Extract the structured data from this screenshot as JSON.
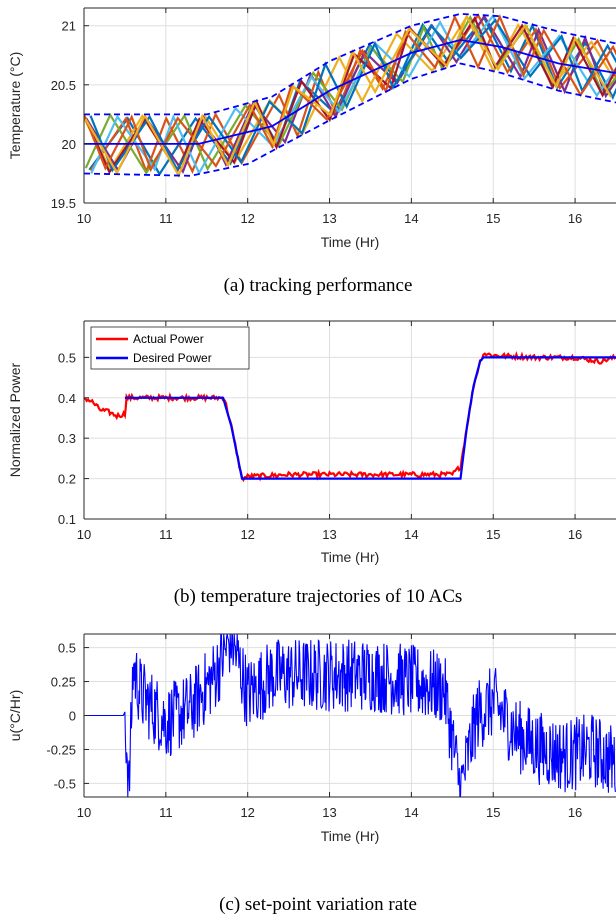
{
  "chart_data": [
    {
      "type": "line",
      "caption": "(a) tracking performance",
      "xlabel": "Time (Hr)",
      "ylabel": "Temperature (°C)",
      "xlim": [
        10,
        16.5
      ],
      "ylim": [
        19.5,
        21.15
      ],
      "xticks": [
        "10",
        "11",
        "12",
        "13",
        "14",
        "15",
        "16"
      ],
      "yticks": [
        "19.5",
        "20",
        "20.5",
        "21"
      ],
      "grid": true,
      "series_count": 10,
      "bounds": [
        {
          "name": "",
          "x": [
            10,
            11.5,
            12.3,
            13,
            14,
            14.6,
            15.1,
            15.8,
            16.5
          ],
          "y": [
            20.25,
            20.25,
            20.4,
            20.7,
            21.0,
            21.1,
            21.08,
            20.95,
            20.85
          ]
        },
        {
          "name": "",
          "x": [
            10,
            11.3,
            12.0,
            13,
            14,
            14.6,
            15.1,
            15.8,
            16.5
          ],
          "y": [
            19.75,
            19.73,
            19.83,
            20.2,
            20.55,
            20.68,
            20.6,
            20.45,
            20.35
          ]
        },
        {
          "name": "",
          "x": [
            10,
            11.4,
            12.3,
            13,
            14,
            14.6,
            15.1,
            15.8,
            16.5
          ],
          "y": [
            20.0,
            20.0,
            20.15,
            20.45,
            20.77,
            20.88,
            20.82,
            20.68,
            20.6
          ]
        }
      ]
    },
    {
      "type": "line",
      "caption": "(b) temperature trajectories of 10 ACs",
      "xlabel": "Time (Hr)",
      "ylabel": "Normalized Power",
      "xlim": [
        10,
        16.5
      ],
      "ylim": [
        0.1,
        0.59
      ],
      "xticks": [
        "10",
        "11",
        "12",
        "13",
        "14",
        "15",
        "16"
      ],
      "yticks": [
        "0.1",
        "0.2",
        "0.3",
        "0.4",
        "0.5"
      ],
      "grid": true,
      "legend": "top-left",
      "series": [
        {
          "name": "Actual Power",
          "color": "#ff0000",
          "x": [
            10,
            10.1,
            10.2,
            10.3,
            10.4,
            10.5,
            10.52,
            10.7,
            11.0,
            11.4,
            11.7,
            11.72,
            11.8,
            11.88,
            11.93,
            12.0,
            12.5,
            13.0,
            13.5,
            14.0,
            14.5,
            14.6,
            14.68,
            14.76,
            14.84,
            14.88,
            15.0,
            15.5,
            16.0,
            16.3,
            16.5
          ],
          "y": [
            0.4,
            0.39,
            0.37,
            0.365,
            0.355,
            0.36,
            0.4,
            0.4,
            0.4,
            0.4,
            0.4,
            0.395,
            0.33,
            0.25,
            0.2,
            0.205,
            0.21,
            0.21,
            0.21,
            0.21,
            0.21,
            0.23,
            0.33,
            0.43,
            0.49,
            0.51,
            0.505,
            0.5,
            0.5,
            0.49,
            0.5
          ]
        },
        {
          "name": "Desired Power",
          "color": "#0000ff",
          "x": [
            10.5,
            11.7,
            11.8,
            11.88,
            11.93,
            14.6,
            14.68,
            14.76,
            14.84,
            14.88,
            16.5
          ],
          "y": [
            0.4,
            0.4,
            0.33,
            0.25,
            0.2,
            0.2,
            0.33,
            0.43,
            0.49,
            0.5,
            0.5
          ]
        }
      ]
    },
    {
      "type": "line",
      "caption": "(c) set-point variation rate",
      "xlabel": "Time (Hr)",
      "ylabel": "u(°C/Hr)",
      "xlim": [
        10,
        16.5
      ],
      "ylim": [
        -0.6,
        0.6
      ],
      "xticks": [
        "10",
        "11",
        "12",
        "13",
        "14",
        "15",
        "16"
      ],
      "yticks": [
        "-0.5",
        "-0.25",
        "0",
        "0.25",
        "0.5"
      ],
      "grid": true,
      "series": [
        {
          "name": "",
          "color": "#0000ff",
          "x": [
            10,
            10.5,
            10.55,
            10.6,
            10.7,
            11.0,
            11.3,
            11.6,
            11.8,
            12.0,
            12.3,
            12.6,
            13.0,
            13.5,
            14.0,
            14.4,
            14.6,
            14.8,
            15.0,
            15.3,
            15.6,
            15.9,
            16.2,
            16.5
          ],
          "y": [
            0,
            0,
            -0.55,
            0.35,
            0.15,
            -0.05,
            0.05,
            0.3,
            0.58,
            0.15,
            0.3,
            0.3,
            0.3,
            0.3,
            0.25,
            0.2,
            -0.55,
            0.0,
            0.1,
            -0.15,
            -0.25,
            -0.3,
            -0.25,
            -0.35
          ]
        }
      ]
    }
  ]
}
